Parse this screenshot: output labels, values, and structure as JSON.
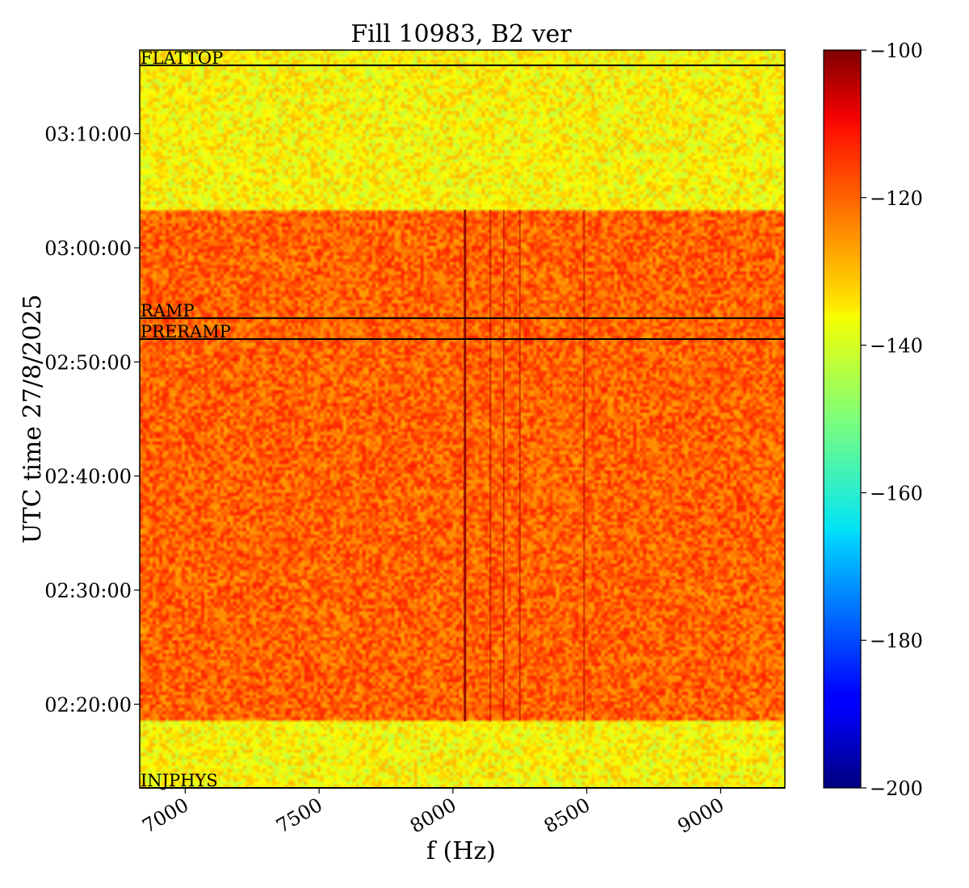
{
  "chart_data": {
    "type": "heatmap",
    "title": "Fill 10983, B2 ver",
    "xlabel": "f (Hz)",
    "ylabel": "UTC time 27/8/2025",
    "xlim": [
      6830,
      9240
    ],
    "x_ticks": [
      {
        "value": 7000,
        "label": "7000"
      },
      {
        "value": 7500,
        "label": "7500"
      },
      {
        "value": 8000,
        "label": "8000"
      },
      {
        "value": 8500,
        "label": "8500"
      },
      {
        "value": 9000,
        "label": "9000"
      }
    ],
    "ylim": [
      "02:12:40",
      "03:17:20"
    ],
    "y_ticks": [
      {
        "value": "02:20:00",
        "label": "02:20:00"
      },
      {
        "value": "02:30:00",
        "label": "02:30:00"
      },
      {
        "value": "02:40:00",
        "label": "02:40:00"
      },
      {
        "value": "02:50:00",
        "label": "02:50:00"
      },
      {
        "value": "03:00:00",
        "label": "03:00:00"
      },
      {
        "value": "03:10:00",
        "label": "03:10:00"
      }
    ],
    "colorbar": {
      "colormap": "jet",
      "range": [
        -200,
        -100
      ],
      "ticks": [
        {
          "value": -100,
          "label": "−100"
        },
        {
          "value": -120,
          "label": "−120"
        },
        {
          "value": -140,
          "label": "−140"
        },
        {
          "value": -160,
          "label": "−160"
        },
        {
          "value": -180,
          "label": "−180"
        },
        {
          "value": -200,
          "label": "−200"
        }
      ]
    },
    "phase_markers": [
      {
        "label": "FLATTOP",
        "time": "03:16:00"
      },
      {
        "label": "RAMP",
        "time": "02:53:50"
      },
      {
        "label": "PRERAMP",
        "time": "02:52:00"
      },
      {
        "label": "INJPHYS",
        "time": "02:12:40"
      }
    ],
    "regions": [
      {
        "from": "02:12:40",
        "to": "02:18:30",
        "level": -137
      },
      {
        "from": "02:18:30",
        "to": "03:03:20",
        "level": -122
      },
      {
        "from": "03:03:20",
        "to": "03:17:20",
        "level": -137
      }
    ],
    "spectral_lines_hz": [
      8045,
      8140,
      8190,
      8250,
      8490
    ],
    "grid": false
  }
}
